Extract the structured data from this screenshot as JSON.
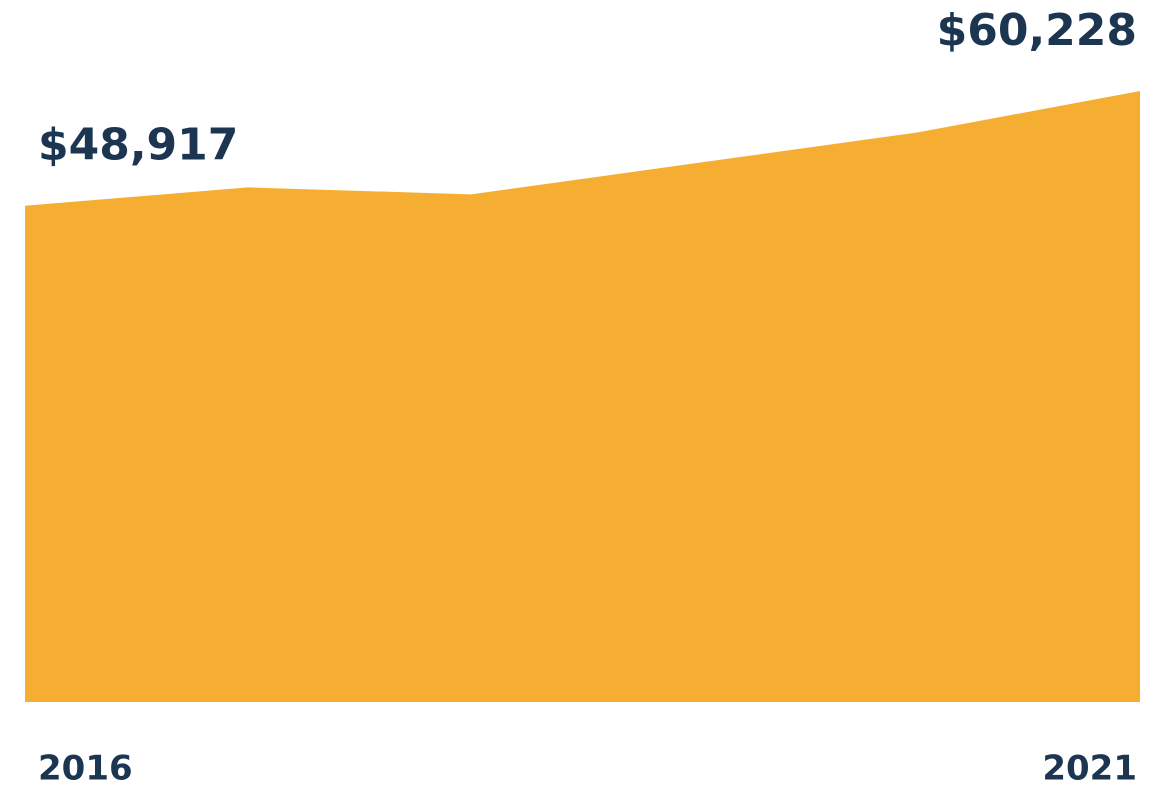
{
  "chart_data": {
    "type": "area",
    "categories": [
      "2016",
      null,
      null,
      null,
      null,
      "2021"
    ],
    "values": [
      48917,
      50720,
      50040,
      53090,
      56130,
      60228
    ],
    "value_labels": [
      "$48,917",
      null,
      null,
      null,
      null,
      "$60,228"
    ],
    "color": "#f5ae32",
    "ylim": [
      0,
      62000
    ]
  }
}
